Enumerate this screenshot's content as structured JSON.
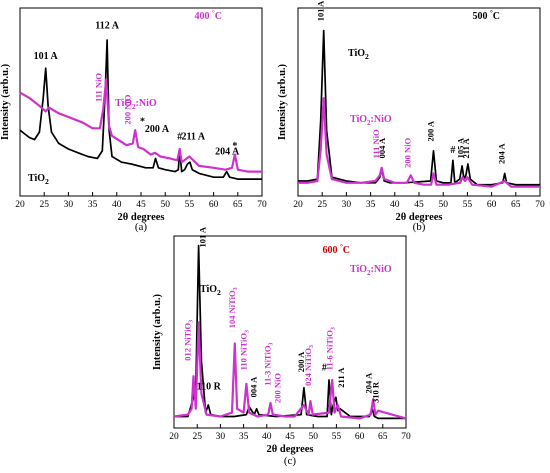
{
  "chart_data": [
    {
      "type": "line",
      "panel_label": "(a)",
      "temperature": "400",
      "temp_unit": "°C",
      "xlabel": "2θ degrees",
      "ylabel": "Intensity (arb.u.)",
      "xlim": [
        20,
        70
      ],
      "ylim": [
        0,
        1
      ],
      "xticks": [
        20,
        25,
        30,
        35,
        40,
        45,
        50,
        55,
        60,
        65,
        70
      ],
      "legend": [
        {
          "text": "TiO",
          "sub": "2",
          "sup": "",
          "color": "#000000"
        },
        {
          "text": "TiO",
          "sub": "2",
          "sup": "",
          "tail": ":NiO",
          "color": "#cc33cc"
        }
      ],
      "series": [
        {
          "name": "TiO2",
          "color": "#000000",
          "x": [
            20,
            21,
            22,
            23,
            24,
            24.8,
            25.3,
            25.8,
            26.5,
            28,
            30,
            32,
            34,
            36,
            37,
            37.6,
            38.0,
            38.4,
            39,
            41,
            43,
            46,
            47.5,
            48.0,
            48.6,
            50,
            52,
            52.7,
            53.0,
            53.4,
            54,
            54.6,
            55.1,
            55.6,
            57,
            60,
            62,
            62.7,
            63.3,
            65,
            68,
            70
          ],
          "y": [
            0.35,
            0.33,
            0.31,
            0.3,
            0.34,
            0.52,
            0.68,
            0.48,
            0.34,
            0.28,
            0.25,
            0.23,
            0.21,
            0.2,
            0.24,
            0.55,
            0.83,
            0.35,
            0.21,
            0.18,
            0.17,
            0.15,
            0.15,
            0.2,
            0.15,
            0.14,
            0.13,
            0.14,
            0.24,
            0.13,
            0.14,
            0.17,
            0.18,
            0.14,
            0.12,
            0.1,
            0.1,
            0.13,
            0.1,
            0.09,
            0.09,
            0.09
          ]
        },
        {
          "name": "TiO2:NiO",
          "color": "#cc33cc",
          "x": [
            20,
            22,
            24,
            25.3,
            26,
            28,
            30,
            33,
            35,
            36.5,
            37.2,
            37.8,
            38.4,
            39,
            42,
            43.3,
            43.8,
            44.4,
            45.5,
            47,
            47.9,
            49,
            51,
            52.5,
            53,
            53.4,
            55,
            57,
            60,
            62.5,
            63.8,
            64.4,
            65,
            67,
            70
          ],
          "y": [
            0.55,
            0.52,
            0.48,
            0.45,
            0.47,
            0.44,
            0.42,
            0.39,
            0.36,
            0.36,
            0.46,
            0.62,
            0.37,
            0.32,
            0.27,
            0.28,
            0.35,
            0.26,
            0.25,
            0.22,
            0.23,
            0.21,
            0.2,
            0.19,
            0.25,
            0.18,
            0.21,
            0.16,
            0.15,
            0.14,
            0.15,
            0.22,
            0.14,
            0.13,
            0.13
          ]
        }
      ],
      "annotations": [
        {
          "text": "101 A",
          "x": 25.3,
          "y": 0.73,
          "color": "#000000",
          "vertical": false
        },
        {
          "text": "112 A",
          "x": 38.0,
          "y": 0.89,
          "color": "#000000",
          "vertical": false
        },
        {
          "text": "200 A",
          "x": 48.3,
          "y": 0.34,
          "color": "#000000",
          "vertical": false
        },
        {
          "text": "211 A",
          "x": 55.8,
          "y": 0.3,
          "color": "#000000",
          "vertical": false
        },
        {
          "text": "204 A",
          "x": 62.8,
          "y": 0.22,
          "color": "#000000",
          "vertical": false
        },
        {
          "text": "#",
          "x": 53.0,
          "y": 0.3,
          "color": "#000000",
          "vertical": false
        },
        {
          "text": "*",
          "x": 45.3,
          "y": 0.38,
          "color": "#000000",
          "vertical": false
        },
        {
          "text": "*",
          "x": 64.4,
          "y": 0.25,
          "color": "#000000",
          "vertical": false
        },
        {
          "text": "111 NiO",
          "x": 36.8,
          "y": 0.5,
          "color": "#cc33cc",
          "vertical": true
        },
        {
          "text": "200 NiO",
          "x": 42.8,
          "y": 0.38,
          "color": "#cc33cc",
          "vertical": true
        }
      ]
    },
    {
      "type": "line",
      "panel_label": "(b)",
      "temperature": "500",
      "temp_unit": "°C",
      "xlabel": "2θ degrees",
      "ylabel": "Intensity (arb.u.)",
      "xlim": [
        20,
        70
      ],
      "ylim": [
        0,
        1
      ],
      "xticks": [
        20,
        25,
        30,
        35,
        40,
        45,
        50,
        55,
        60,
        65,
        70
      ],
      "legend": [
        {
          "text": "TiO",
          "sub": "2",
          "color": "#000000"
        },
        {
          "text": "TiO",
          "sub": "2",
          "tail": ":NiO",
          "color": "#cc33cc"
        }
      ],
      "series": [
        {
          "name": "TiO2",
          "color": "#000000",
          "x": [
            20,
            22,
            24,
            24.7,
            25.3,
            25.9,
            27,
            30,
            33,
            36,
            36.9,
            37.3,
            37.8,
            39,
            42,
            47.4,
            48.0,
            48.6,
            50,
            51.6,
            52.0,
            52.4,
            53.4,
            53.9,
            54.3,
            54.7,
            55.1,
            55.6,
            57,
            60,
            62.3,
            62.7,
            63.1,
            65,
            70
          ],
          "y": [
            0.08,
            0.08,
            0.09,
            0.4,
            0.88,
            0.35,
            0.1,
            0.08,
            0.07,
            0.07,
            0.1,
            0.14,
            0.08,
            0.07,
            0.07,
            0.08,
            0.24,
            0.08,
            0.07,
            0.07,
            0.19,
            0.07,
            0.09,
            0.16,
            0.09,
            0.11,
            0.17,
            0.09,
            0.06,
            0.06,
            0.07,
            0.12,
            0.07,
            0.06,
            0.06
          ]
        },
        {
          "name": "TiO2:NiO",
          "color": "#cc33cc",
          "x": [
            20,
            22,
            24,
            24.7,
            25.3,
            25.9,
            27,
            30,
            33,
            36,
            36.9,
            37.3,
            37.8,
            40,
            42.5,
            43.3,
            44.0,
            46,
            47.5,
            48.0,
            48.6,
            51,
            53.5,
            54.0,
            54.5,
            55.0,
            56,
            60,
            62.7,
            64,
            70
          ],
          "y": [
            0.07,
            0.07,
            0.08,
            0.25,
            0.52,
            0.22,
            0.09,
            0.07,
            0.07,
            0.08,
            0.11,
            0.15,
            0.09,
            0.07,
            0.07,
            0.11,
            0.07,
            0.06,
            0.06,
            0.12,
            0.06,
            0.06,
            0.07,
            0.1,
            0.08,
            0.1,
            0.06,
            0.05,
            0.08,
            0.05,
            0.05
          ]
        }
      ],
      "annotations": [
        {
          "text": "101 A",
          "x": 25.3,
          "y": 0.93,
          "color": "#000000",
          "vertical": true
        },
        {
          "text": "004 A",
          "x": 38.0,
          "y": 0.2,
          "color": "#000000",
          "vertical": true
        },
        {
          "text": "200 A",
          "x": 48.0,
          "y": 0.29,
          "color": "#000000",
          "vertical": true
        },
        {
          "text": "#",
          "x": 52.0,
          "y": 0.23,
          "color": "#000000",
          "vertical": false
        },
        {
          "text": "105 A",
          "x": 54.2,
          "y": 0.2,
          "color": "#000000",
          "vertical": true
        },
        {
          "text": "211 A",
          "x": 55.3,
          "y": 0.2,
          "color": "#000000",
          "vertical": true
        },
        {
          "text": "204 A",
          "x": 62.7,
          "y": 0.17,
          "color": "#000000",
          "vertical": true
        },
        {
          "text": "111 NiO",
          "x": 36.7,
          "y": 0.2,
          "color": "#cc33cc",
          "vertical": true
        },
        {
          "text": "200 NiO",
          "x": 43.2,
          "y": 0.15,
          "color": "#cc33cc",
          "vertical": true
        }
      ]
    },
    {
      "type": "line",
      "panel_label": "(c)",
      "temperature": "600",
      "temp_unit": "°C",
      "xlabel": "2θ degrees",
      "ylabel": "Intensity (arb.u.)",
      "xlim": [
        20,
        70
      ],
      "ylim": [
        0,
        1
      ],
      "xticks": [
        20,
        25,
        30,
        35,
        40,
        45,
        50,
        55,
        60,
        65,
        70
      ],
      "legend": [
        {
          "text": "TiO",
          "sub": "2",
          "color": "#000000"
        },
        {
          "text": "TiO",
          "sub": "2",
          "tail": ":NiO",
          "color": "#cc33cc"
        }
      ],
      "series": [
        {
          "name": "TiO2",
          "color": "#000000",
          "x": [
            20,
            23,
            24.7,
            25.3,
            25.9,
            26.8,
            27.4,
            27.9,
            30,
            33,
            35.6,
            36.2,
            37.3,
            37.8,
            38.3,
            42,
            47.4,
            48.0,
            48.6,
            51,
            53.0,
            53.4,
            53.9,
            54.3,
            54.9,
            55.3,
            55.8,
            58,
            62.1,
            62.7,
            63.2,
            64,
            70
          ],
          "y": [
            0.06,
            0.06,
            0.2,
            0.95,
            0.35,
            0.08,
            0.12,
            0.07,
            0.06,
            0.06,
            0.07,
            0.11,
            0.07,
            0.1,
            0.07,
            0.06,
            0.07,
            0.21,
            0.07,
            0.06,
            0.06,
            0.25,
            0.07,
            0.12,
            0.16,
            0.09,
            0.1,
            0.06,
            0.06,
            0.1,
            0.06,
            0.05,
            0.05
          ]
        },
        {
          "name": "TiO2:NiO",
          "color": "#cc33cc",
          "x": [
            20,
            23,
            23.8,
            24.2,
            24.7,
            25.3,
            25.9,
            27,
            30,
            32.5,
            33.1,
            33.6,
            35.0,
            35.6,
            36.2,
            38,
            40.3,
            40.8,
            41.3,
            44,
            46,
            48.0,
            49,
            49.4,
            49.9,
            53.4,
            53.8,
            54.1,
            54.6,
            55.3,
            56,
            60,
            62.4,
            62.9,
            63.4,
            64.0,
            70
          ],
          "y": [
            0.06,
            0.07,
            0.1,
            0.27,
            0.1,
            0.55,
            0.18,
            0.07,
            0.06,
            0.08,
            0.44,
            0.1,
            0.08,
            0.23,
            0.08,
            0.06,
            0.07,
            0.13,
            0.07,
            0.06,
            0.06,
            0.12,
            0.07,
            0.14,
            0.07,
            0.08,
            0.18,
            0.25,
            0.08,
            0.12,
            0.06,
            0.05,
            0.07,
            0.15,
            0.07,
            0.09,
            0.05
          ]
        }
      ],
      "annotations": [
        {
          "text": "101 A",
          "x": 26.8,
          "y": 0.94,
          "color": "#000000",
          "vertical": true
        },
        {
          "text": "110 R",
          "x": 27.5,
          "y": 0.2,
          "color": "#000000",
          "vertical": false
        },
        {
          "text": "004 A",
          "x": 37.8,
          "y": 0.16,
          "color": "#000000",
          "vertical": true
        },
        {
          "text": "200 A",
          "x": 48.0,
          "y": 0.29,
          "color": "#000000",
          "vertical": true
        },
        {
          "text": "#",
          "x": 52.4,
          "y": 0.3,
          "color": "#000000",
          "vertical": false
        },
        {
          "text": "211 A",
          "x": 56.6,
          "y": 0.21,
          "color": "#000000",
          "vertical": true
        },
        {
          "text": "204 A",
          "x": 62.6,
          "y": 0.18,
          "color": "#000000",
          "vertical": true
        },
        {
          "text": "310 R",
          "x": 64.1,
          "y": 0.13,
          "color": "#000000",
          "vertical": true
        },
        {
          "text": "012 NiTiO3",
          "x": 23.6,
          "y": 0.35,
          "color": "#cc33cc",
          "vertical": true
        },
        {
          "text": "104 NiTiO3",
          "x": 33.1,
          "y": 0.52,
          "color": "#cc33cc",
          "vertical": true
        },
        {
          "text": "110 NiTiO3",
          "x": 35.6,
          "y": 0.3,
          "color": "#cc33cc",
          "vertical": true
        },
        {
          "text": "11-3 NiTiO3",
          "x": 40.8,
          "y": 0.22,
          "color": "#cc33cc",
          "vertical": true
        },
        {
          "text": "200 NiO",
          "x": 43.0,
          "y": 0.13,
          "color": "#cc33cc",
          "vertical": true
        },
        {
          "text": "024 NiTiO3",
          "x": 49.5,
          "y": 0.22,
          "color": "#cc33cc",
          "vertical": true
        },
        {
          "text": "11-6 NiTiO3",
          "x": 54.2,
          "y": 0.3,
          "color": "#cc33cc",
          "vertical": true
        }
      ]
    }
  ]
}
